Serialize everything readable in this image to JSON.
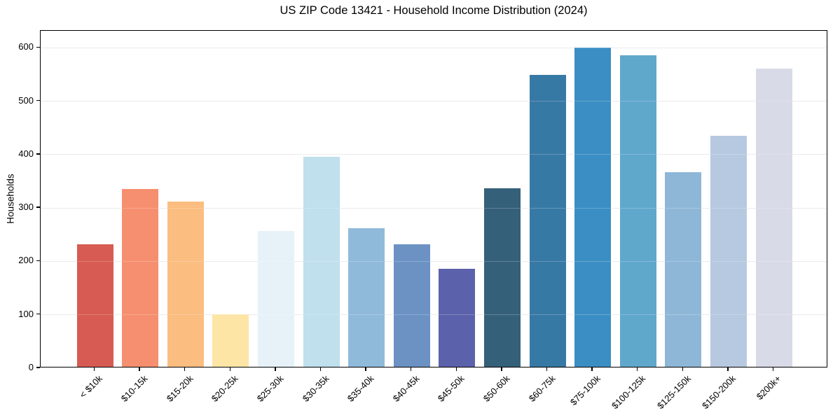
{
  "chart_data": {
    "type": "bar",
    "title": "US ZIP Code 13421 - Household Income Distribution (2024)",
    "xlabel": "",
    "ylabel": "Households",
    "categories": [
      "< $10k",
      "$10-15k",
      "$15-20k",
      "$20-25k",
      "$25-30k",
      "$30-35k",
      "$35-40k",
      "$40-45k",
      "$45-50k",
      "$50-60k",
      "$60-75k",
      "$75-100k",
      "$100-125k",
      "$125-150k",
      "$150-200k",
      "$200k+"
    ],
    "values": [
      230,
      333,
      310,
      99,
      255,
      394,
      259,
      229,
      183,
      334,
      547,
      598,
      584,
      364,
      433,
      558
    ],
    "bar_colors": [
      "#d75b52",
      "#f68f6f",
      "#fbbd80",
      "#fde5a6",
      "#e6f2f7",
      "#bfe0ec",
      "#90bada",
      "#6b92c3",
      "#5c61ab",
      "#35607a",
      "#3779a5",
      "#3a8ec3",
      "#60a7cc",
      "#8eb7d7",
      "#b7c9e0",
      "#d9dae8"
    ],
    "ylim": [
      0,
      632
    ],
    "yticks": [
      0,
      100,
      200,
      300,
      400,
      500,
      600
    ],
    "grid": "horizontal",
    "legend": "none",
    "style": {
      "background": "#ffffff",
      "axis_color": "#000000",
      "grid_color": "#e6e6e6",
      "text_color": "#000000",
      "xtick_rotation_deg": 45
    }
  }
}
